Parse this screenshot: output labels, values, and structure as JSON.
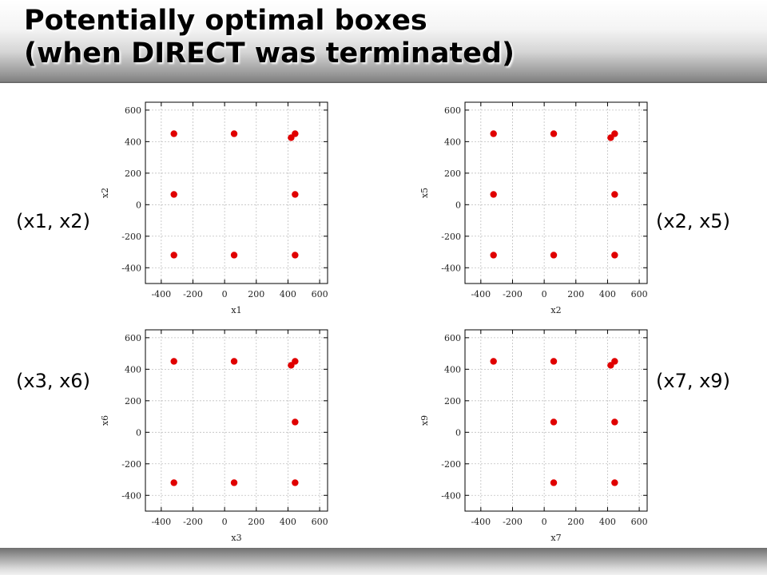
{
  "slide": {
    "title_line1": "Potentially optimal boxes",
    "title_line2": "(when DIRECT was terminated)"
  },
  "colors": {
    "points": "#e00000",
    "grid": "#bfbfbf",
    "axes": "#000000"
  },
  "chart_data": [
    {
      "type": "scatter",
      "label": "(x1, x2)",
      "xlabel": "x1",
      "ylabel": "x2",
      "xlim": [
        -500,
        650
      ],
      "ylim": [
        -500,
        650
      ],
      "xticks": [
        -400,
        -200,
        0,
        200,
        400,
        600
      ],
      "yticks": [
        600,
        400,
        200,
        0,
        -200,
        -400
      ],
      "grid": true,
      "points": [
        {
          "x": -320,
          "y": 450
        },
        {
          "x": 60,
          "y": 450
        },
        {
          "x": 445,
          "y": 450
        },
        {
          "x": 420,
          "y": 425
        },
        {
          "x": -320,
          "y": 65
        },
        {
          "x": 445,
          "y": 65
        },
        {
          "x": -320,
          "y": -320
        },
        {
          "x": 60,
          "y": -320
        },
        {
          "x": 445,
          "y": -320
        }
      ]
    },
    {
      "type": "scatter",
      "label": "(x2, x5)",
      "xlabel": "x2",
      "ylabel": "x5",
      "xlim": [
        -500,
        650
      ],
      "ylim": [
        -500,
        650
      ],
      "xticks": [
        -400,
        -200,
        0,
        200,
        400,
        600
      ],
      "yticks": [
        600,
        400,
        200,
        0,
        -200,
        -400
      ],
      "grid": true,
      "points": [
        {
          "x": -320,
          "y": 450
        },
        {
          "x": 60,
          "y": 450
        },
        {
          "x": 445,
          "y": 450
        },
        {
          "x": 420,
          "y": 425
        },
        {
          "x": -320,
          "y": 65
        },
        {
          "x": 445,
          "y": 65
        },
        {
          "x": -320,
          "y": -320
        },
        {
          "x": 60,
          "y": -320
        },
        {
          "x": 445,
          "y": -320
        }
      ]
    },
    {
      "type": "scatter",
      "label": "(x3, x6)",
      "xlabel": "x3",
      "ylabel": "x6",
      "xlim": [
        -500,
        650
      ],
      "ylim": [
        -500,
        650
      ],
      "xticks": [
        -400,
        -200,
        0,
        200,
        400,
        600
      ],
      "yticks": [
        600,
        400,
        200,
        0,
        -200,
        -400
      ],
      "grid": true,
      "points": [
        {
          "x": -320,
          "y": 450
        },
        {
          "x": 60,
          "y": 450
        },
        {
          "x": 445,
          "y": 450
        },
        {
          "x": 420,
          "y": 425
        },
        {
          "x": 445,
          "y": 65
        },
        {
          "x": -320,
          "y": -320
        },
        {
          "x": 60,
          "y": -320
        },
        {
          "x": 445,
          "y": -320
        }
      ]
    },
    {
      "type": "scatter",
      "label": "(x7, x9)",
      "xlabel": "x7",
      "ylabel": "x9",
      "xlim": [
        -500,
        650
      ],
      "ylim": [
        -500,
        650
      ],
      "xticks": [
        -400,
        -200,
        0,
        200,
        400,
        600
      ],
      "yticks": [
        600,
        400,
        200,
        0,
        -200,
        -400
      ],
      "grid": true,
      "points": [
        {
          "x": -320,
          "y": 450
        },
        {
          "x": 60,
          "y": 450
        },
        {
          "x": 445,
          "y": 450
        },
        {
          "x": 420,
          "y": 425
        },
        {
          "x": 60,
          "y": 65
        },
        {
          "x": 445,
          "y": 65
        },
        {
          "x": 60,
          "y": -320
        },
        {
          "x": 445,
          "y": -320
        }
      ]
    }
  ]
}
